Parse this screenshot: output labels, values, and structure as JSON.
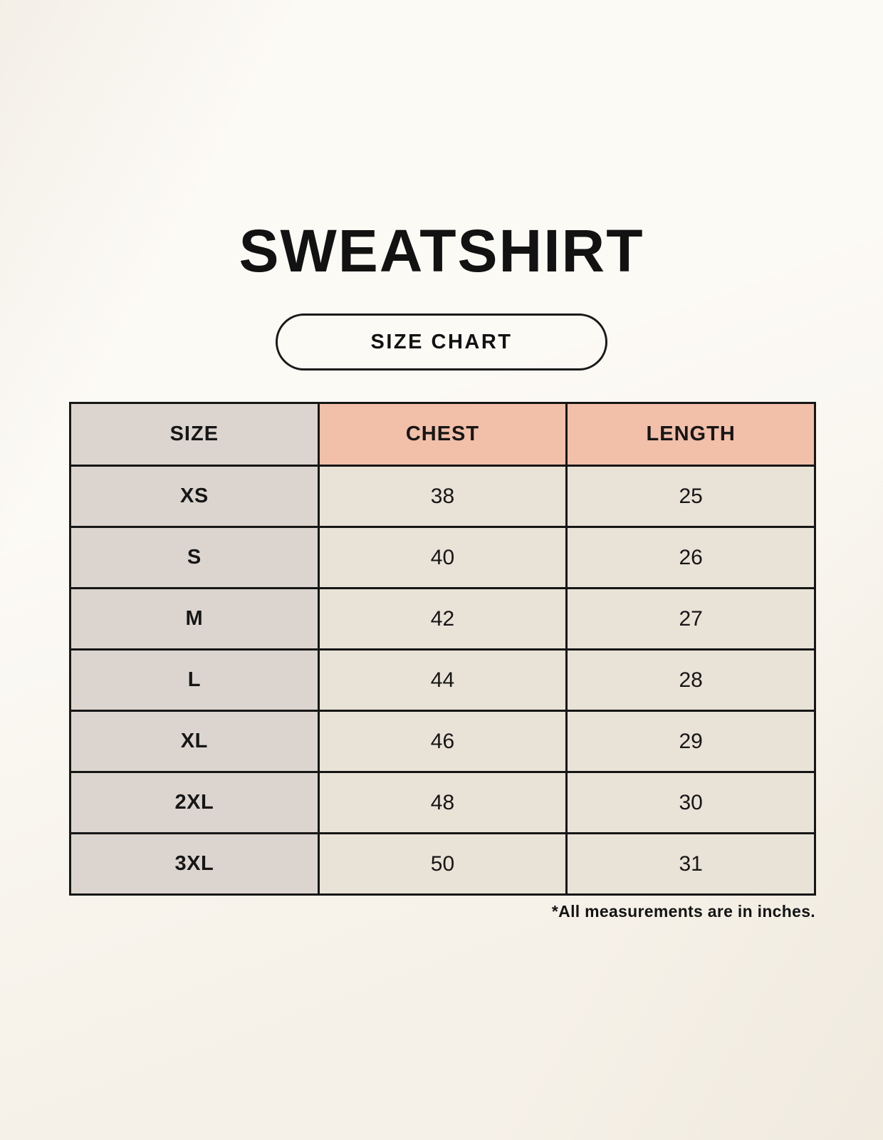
{
  "title": "SWEATSHIRT",
  "badge": {
    "label": "SIZE CHART"
  },
  "footnote": "*All measurements are in inches.",
  "colors": {
    "background": "#F9F5ED",
    "table_border": "#161616",
    "header_size_bg": "#DCD5CF",
    "header_measure_bg": "#F2BFA9",
    "size_column_bg": "#DCD5CF",
    "value_cell_bg": "#E9E2D7",
    "text": "#161616"
  },
  "chart_data": {
    "type": "table",
    "title": "SWEATSHIRT",
    "subtitle": "SIZE CHART",
    "columns": [
      "SIZE",
      "CHEST",
      "LENGTH"
    ],
    "rows": [
      {
        "size": "XS",
        "chest": 38,
        "length": 25
      },
      {
        "size": "S",
        "chest": 40,
        "length": 26
      },
      {
        "size": "M",
        "chest": 42,
        "length": 27
      },
      {
        "size": "L",
        "chest": 44,
        "length": 28
      },
      {
        "size": "XL",
        "chest": 46,
        "length": 29
      },
      {
        "size": "2XL",
        "chest": 48,
        "length": 30
      },
      {
        "size": "3XL",
        "chest": 50,
        "length": 31
      }
    ],
    "units": "inches",
    "note": "*All measurements are in inches."
  }
}
